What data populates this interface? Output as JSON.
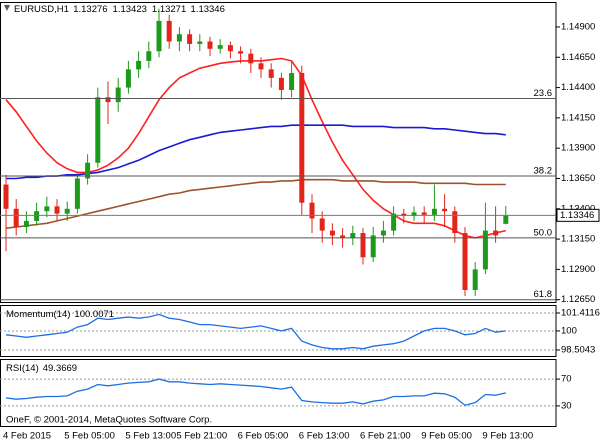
{
  "chart_data": [
    {
      "type": "candlestick",
      "title": "EURUSD,H1",
      "categories": [
        "4 Feb 2015",
        null,
        null,
        null,
        null,
        null,
        "5 Feb 05:00",
        null,
        null,
        null,
        null,
        null,
        "5 Feb 13:00",
        null,
        null,
        null,
        null,
        "5 Feb 21:00",
        null,
        null,
        null,
        null,
        null,
        "6 Feb 05:00",
        null,
        null,
        null,
        null,
        null,
        "6 Feb 13:00",
        null,
        null,
        null,
        null,
        null,
        "6 Feb 21:00",
        null,
        null,
        null,
        null,
        null,
        "9 Feb 05:00",
        null,
        null,
        null,
        null,
        null,
        "9 Feb 13:00",
        null,
        null
      ],
      "open": [
        1.136,
        1.134,
        1.1325,
        1.133,
        1.1338,
        1.1342,
        1.1336,
        1.134,
        1.1365,
        1.1378,
        1.1432,
        1.1428,
        1.144,
        1.1455,
        1.1462,
        1.147,
        1.1495,
        1.1478,
        1.1484,
        1.1476,
        1.1478,
        1.1472,
        1.1475,
        1.147,
        1.1468,
        1.146,
        1.1455,
        1.1448,
        1.1438,
        1.1452,
        1.1345,
        1.1332,
        1.1322,
        1.1318,
        1.1316,
        1.132,
        1.13,
        1.1318,
        1.1322,
        1.1336,
        1.1334,
        1.1337,
        1.1335,
        1.134,
        1.1338,
        1.132,
        1.1273,
        1.129,
        1.1322,
        1.13276
      ],
      "high": [
        1.1368,
        1.1348,
        1.1338,
        1.1345,
        1.135,
        1.1348,
        1.1346,
        1.137,
        1.1385,
        1.144,
        1.1445,
        1.1448,
        1.1462,
        1.147,
        1.1478,
        1.1505,
        1.15,
        1.149,
        1.1488,
        1.1484,
        1.1482,
        1.148,
        1.1478,
        1.1474,
        1.1472,
        1.1465,
        1.146,
        1.1452,
        1.1462,
        1.1458,
        1.1352,
        1.1338,
        1.1328,
        1.1324,
        1.1326,
        1.1324,
        1.1325,
        1.133,
        1.1342,
        1.134,
        1.1342,
        1.1342,
        1.136,
        1.1352,
        1.1342,
        1.1325,
        1.1296,
        1.1345,
        1.1342,
        1.13423
      ],
      "low": [
        1.1305,
        1.1318,
        1.132,
        1.1326,
        1.1333,
        1.133,
        1.133,
        1.1336,
        1.136,
        1.1374,
        1.141,
        1.142,
        1.1435,
        1.1448,
        1.1456,
        1.1465,
        1.1472,
        1.147,
        1.147,
        1.147,
        1.1466,
        1.1468,
        1.1464,
        1.146,
        1.1452,
        1.1448,
        1.144,
        1.143,
        1.1432,
        1.1335,
        1.132,
        1.1312,
        1.131,
        1.1308,
        1.131,
        1.1294,
        1.1296,
        1.1312,
        1.1318,
        1.1328,
        1.133,
        1.1328,
        1.133,
        1.1325,
        1.1312,
        1.1268,
        1.1268,
        1.1286,
        1.1312,
        1.13271
      ],
      "close": [
        1.134,
        1.1325,
        1.133,
        1.1338,
        1.1342,
        1.1336,
        1.134,
        1.1365,
        1.1378,
        1.1432,
        1.1428,
        1.144,
        1.1455,
        1.1462,
        1.147,
        1.1495,
        1.1478,
        1.1484,
        1.1476,
        1.1478,
        1.1472,
        1.1475,
        1.147,
        1.1468,
        1.146,
        1.1455,
        1.1448,
        1.1438,
        1.1452,
        1.1345,
        1.1332,
        1.1322,
        1.1318,
        1.1316,
        1.132,
        1.13,
        1.1318,
        1.1322,
        1.1336,
        1.1334,
        1.1337,
        1.1335,
        1.134,
        1.1338,
        1.132,
        1.1273,
        1.129,
        1.1322,
        1.1318,
        1.13346
      ],
      "up_color": "#1c9a1c",
      "down_color": "#e3241b",
      "series": [
        {
          "color": "#ff2020",
          "values": [
            1.143,
            1.142,
            1.1408,
            1.1396,
            1.1386,
            1.1378,
            1.1373,
            1.137,
            1.137,
            1.1372,
            1.1376,
            1.1382,
            1.139,
            1.1402,
            1.1416,
            1.143,
            1.144,
            1.1448,
            1.1452,
            1.1456,
            1.1458,
            1.146,
            1.1461,
            1.1462,
            1.1462,
            1.1462,
            1.1463,
            1.1464,
            1.1462,
            1.145,
            1.143,
            1.1412,
            1.1395,
            1.138,
            1.1368,
            1.1356,
            1.1347,
            1.134,
            1.1335,
            1.133,
            1.1328,
            1.1328,
            1.1328,
            1.1326,
            1.1322,
            1.1318,
            1.1316,
            1.1318,
            1.132,
            1.1322
          ]
        },
        {
          "color": "#1a1ad2",
          "values": [
            1.1365,
            1.1365,
            1.1366,
            1.1366,
            1.1367,
            1.1367,
            1.1368,
            1.1368,
            1.1369,
            1.137,
            1.1372,
            1.1374,
            1.1377,
            1.138,
            1.1384,
            1.1388,
            1.1391,
            1.1394,
            1.1397,
            1.1399,
            1.1401,
            1.1403,
            1.1404,
            1.1405,
            1.1406,
            1.1407,
            1.1408,
            1.1408,
            1.1409,
            1.1409,
            1.1409,
            1.1409,
            1.1409,
            1.1409,
            1.1408,
            1.1408,
            1.1408,
            1.1408,
            1.1407,
            1.1407,
            1.1407,
            1.1407,
            1.1406,
            1.1406,
            1.1405,
            1.1404,
            1.1403,
            1.1402,
            1.1402,
            1.1401
          ]
        },
        {
          "color": "#a0522d",
          "values": [
            1.1324,
            1.1325,
            1.1326,
            1.1327,
            1.1328,
            1.133,
            1.1332,
            1.1334,
            1.1336,
            1.1338,
            1.134,
            1.1342,
            1.1344,
            1.1346,
            1.1348,
            1.135,
            1.1352,
            1.1353,
            1.1355,
            1.1356,
            1.1357,
            1.1358,
            1.1359,
            1.136,
            1.1361,
            1.1362,
            1.1362,
            1.1363,
            1.1363,
            1.1364,
            1.1364,
            1.1364,
            1.1364,
            1.1363,
            1.1363,
            1.1363,
            1.1363,
            1.1362,
            1.1362,
            1.1362,
            1.1362,
            1.1361,
            1.1361,
            1.1361,
            1.1361,
            1.1361,
            1.136,
            1.136,
            1.136,
            1.136
          ]
        }
      ],
      "levels": [
        {
          "name": "23.6",
          "value": 1.1431
        },
        {
          "name": "38.2",
          "value": 1.1367
        },
        {
          "name": "50.0",
          "value": 1.1316
        },
        {
          "name": "61.8",
          "value": 1.1265
        }
      ],
      "level_color": "#555555",
      "ylim": [
        1.12631,
        1.15106
      ],
      "yticks": [
        {
          "value": 1.149,
          "label": "1.14900"
        },
        {
          "value": 1.1465,
          "label": "1.14650"
        },
        {
          "value": 1.144,
          "label": "1.14400"
        },
        {
          "value": 1.1415,
          "label": "1.14150"
        },
        {
          "value": 1.139,
          "label": "1.13900"
        },
        {
          "value": 1.1365,
          "label": "1.13650"
        },
        {
          "value": 1.134,
          "label": "1.13400"
        },
        {
          "value": 1.1315,
          "label": "1.13150"
        },
        {
          "value": 1.129,
          "label": "1.12900"
        },
        {
          "value": 1.1265,
          "label": "1.12650"
        }
      ],
      "grid": false
    },
    {
      "type": "line",
      "title": "Momentum(14)",
      "color": "#1e6fe0",
      "values": [
        99.7,
        99.6,
        99.5,
        99.6,
        99.7,
        99.8,
        99.9,
        100.3,
        100.5,
        101.0,
        100.9,
        101.0,
        101.1,
        101.0,
        101.1,
        101.3,
        101.0,
        100.9,
        100.7,
        100.5,
        100.5,
        100.4,
        100.3,
        100.2,
        100.3,
        100.4,
        100.2,
        100.0,
        100.2,
        99.2,
        98.9,
        98.7,
        98.6,
        98.6,
        98.7,
        98.6,
        98.8,
        98.9,
        99.0,
        99.2,
        99.6,
        100.0,
        100.2,
        100.2,
        100.0,
        99.7,
        99.8,
        100.2,
        99.9,
        100.0071
      ],
      "ylim": [
        98.03,
        102.04
      ],
      "yticks": [
        101.4116,
        100,
        98.5043
      ],
      "grid": true
    },
    {
      "type": "line",
      "title": "RSI(14)",
      "color": "#1e6fe0",
      "values": [
        42,
        40,
        41,
        43,
        44,
        44,
        45,
        52,
        55,
        62,
        60,
        62,
        64,
        65,
        66,
        70,
        66,
        66,
        64,
        63,
        62,
        63,
        62,
        61,
        60,
        59,
        57,
        55,
        58,
        38,
        36,
        35,
        34,
        34,
        36,
        33,
        37,
        39,
        44,
        44,
        45,
        45,
        49,
        48,
        43,
        31,
        35,
        47,
        46,
        49.3669
      ],
      "ylim": [
        0,
        100
      ],
      "yticks": [
        70,
        30
      ],
      "grid": true
    }
  ],
  "footer": "OneF, © 2001-2014, MetaQuotes Software Corp."
}
